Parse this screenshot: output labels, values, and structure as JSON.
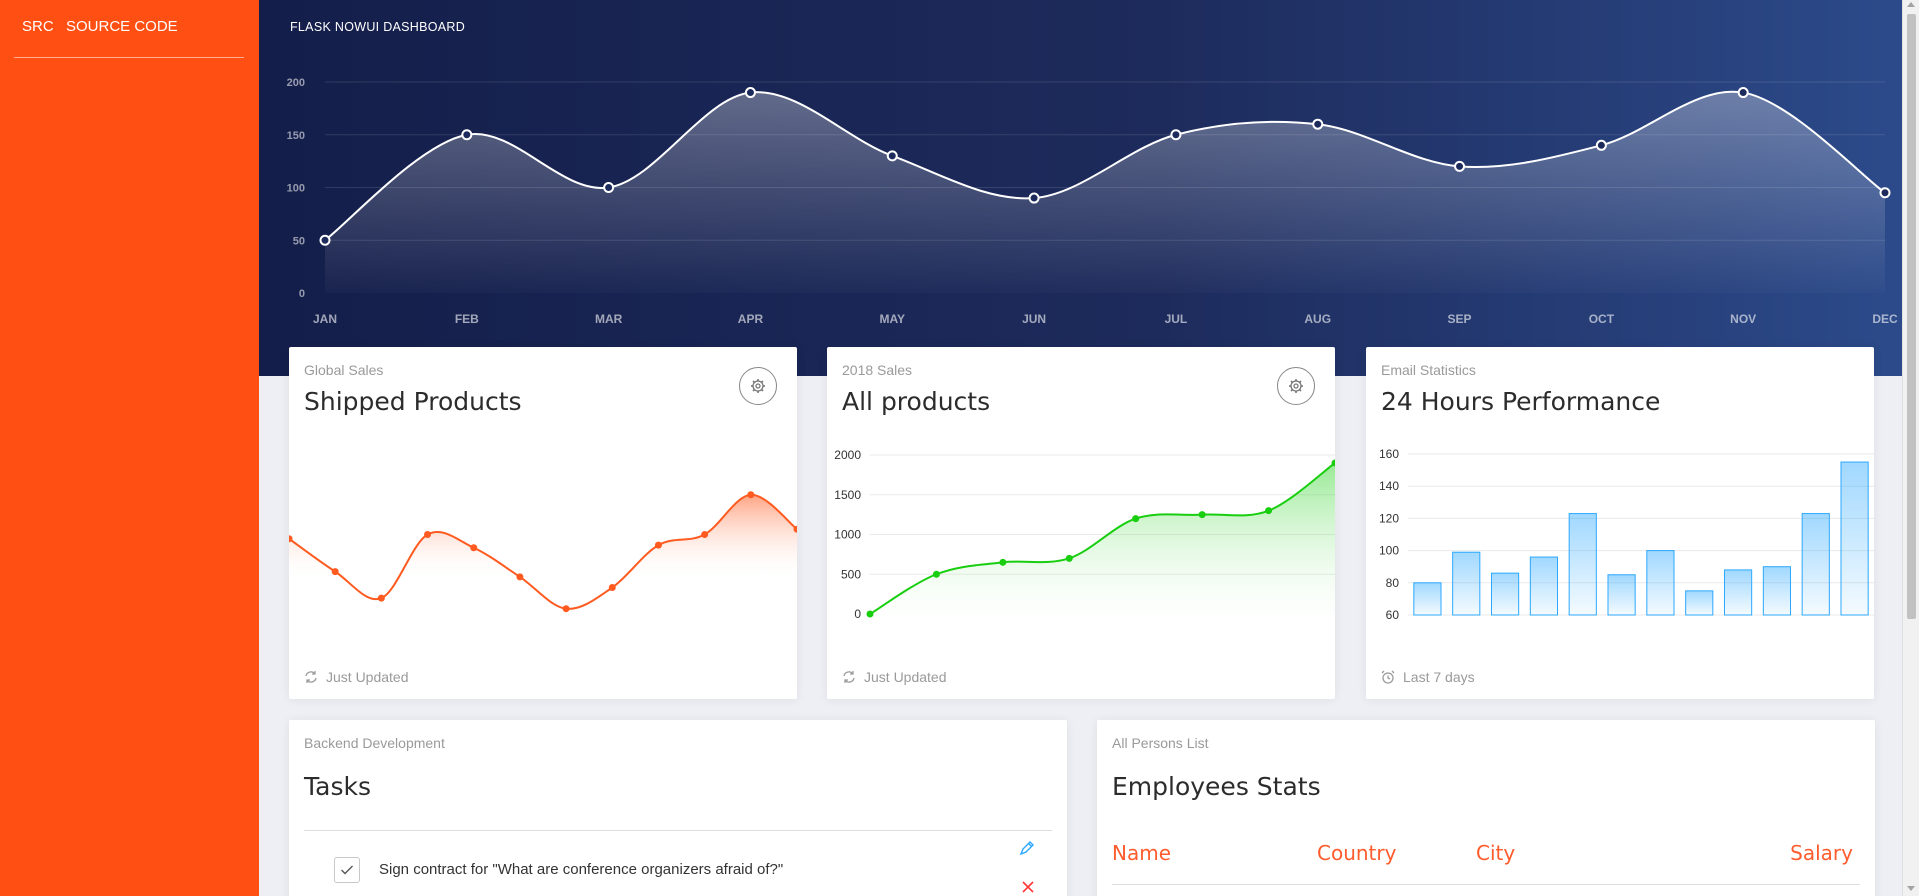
{
  "sidebar": {
    "logo_mini": "SRC",
    "logo_full": "SOURCE CODE"
  },
  "header": {
    "title": "FLASK NOWUI DASHBOARD"
  },
  "colors": {
    "sidebar": "#ff4f12",
    "hero_start": "#141e4a",
    "hero_end": "#2c4a8a",
    "orange_line": "#ff5a1f",
    "green_line": "#18ce0f",
    "blue_bar": "#2ca8ff",
    "table_header": "#ff5c2e"
  },
  "chart_data": [
    {
      "type": "line",
      "categories": [
        "JAN",
        "FEB",
        "MAR",
        "APR",
        "MAY",
        "JUN",
        "JUL",
        "AUG",
        "SEP",
        "OCT",
        "NOV",
        "DEC"
      ],
      "values": [
        50,
        150,
        100,
        190,
        130,
        90,
        150,
        160,
        120,
        140,
        190,
        95
      ],
      "ylim": [
        0,
        200
      ],
      "yticks": [
        0,
        50,
        100,
        150,
        200
      ],
      "grid": true
    },
    {
      "type": "area",
      "values": [
        542,
        480,
        430,
        550,
        525,
        470,
        410,
        450,
        530,
        550,
        625,
        560
      ],
      "ylim": [
        300,
        700
      ],
      "grid": false
    },
    {
      "type": "area",
      "values": [
        0,
        500,
        650,
        700,
        1200,
        1250,
        1300,
        1900
      ],
      "ylim": [
        0,
        2000
      ],
      "yticks": [
        0,
        500,
        1000,
        1500,
        2000
      ],
      "grid": true
    },
    {
      "type": "bar",
      "values": [
        80,
        99,
        86,
        96,
        123,
        85,
        100,
        75,
        88,
        90,
        123,
        155
      ],
      "ylim": [
        60,
        160
      ],
      "yticks": [
        60,
        80,
        100,
        120,
        140,
        160
      ],
      "grid": true
    }
  ],
  "cards": {
    "shipped": {
      "category": "Global Sales",
      "title": "Shipped Products",
      "footer_icon": "refresh-icon",
      "footer": "Just Updated"
    },
    "all_products": {
      "category": "2018 Sales",
      "title": "All products",
      "footer_icon": "refresh-icon",
      "footer": "Just Updated"
    },
    "email": {
      "category": "Email Statistics",
      "title": "24 Hours Performance",
      "footer_icon": "alarm-icon",
      "footer": "Last 7 days"
    }
  },
  "tasks": {
    "category": "Backend Development",
    "title": "Tasks",
    "items": [
      {
        "text": "Sign contract for \"What are conference organizers afraid of?\"",
        "checked": true
      }
    ]
  },
  "employees": {
    "category": "All Persons List",
    "title": "Employees Stats",
    "columns": [
      "Name",
      "Country",
      "City",
      "Salary"
    ]
  }
}
